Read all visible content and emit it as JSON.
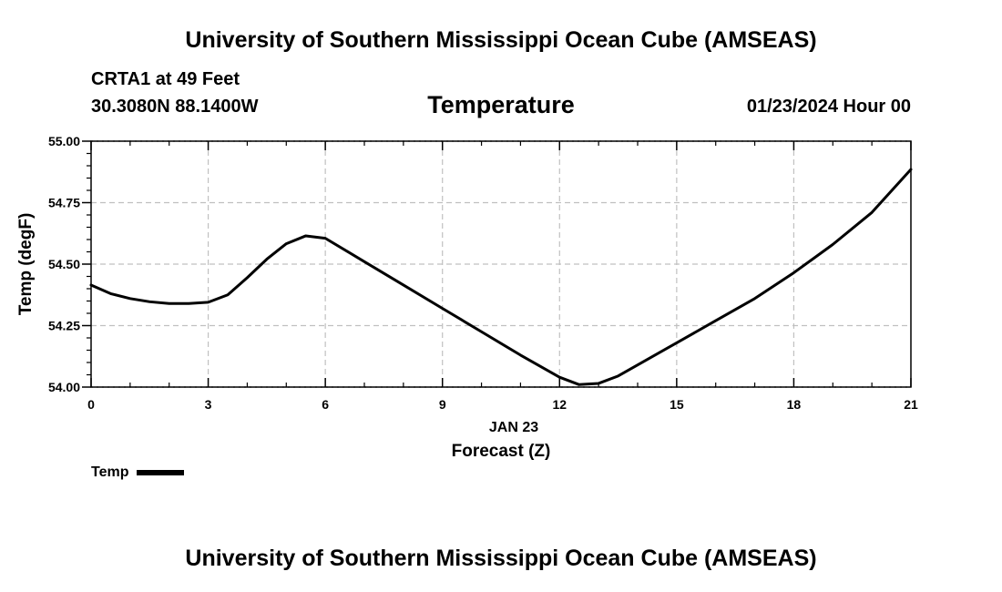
{
  "header": {
    "title": "University of Southern Mississippi Ocean Cube (AMSEAS)",
    "station": "CRTA1 at 49 Feet",
    "coordinates": "30.3080N  88.1400W",
    "variable": "Temperature",
    "datetime": "01/23/2024 Hour 00"
  },
  "footer": {
    "title": "University of Southern Mississippi Ocean Cube (AMSEAS)"
  },
  "legend": {
    "label": "Temp"
  },
  "chart_data": {
    "type": "line",
    "title": "Temperature",
    "xlabel": "Forecast (Z)",
    "xsublabel": "JAN 23",
    "ylabel": "Temp (degF)",
    "xlim": [
      0,
      21
    ],
    "ylim": [
      54.0,
      55.0
    ],
    "xticks": [
      0,
      3,
      6,
      9,
      12,
      15,
      18,
      21
    ],
    "yticks": [
      54.0,
      54.25,
      54.5,
      54.75,
      55.0
    ],
    "ytick_labels": [
      "54.00",
      "54.25",
      "54.50",
      "54.75",
      "55.00"
    ],
    "grid": true,
    "series": [
      {
        "name": "Temp",
        "color": "#000000",
        "x": [
          0,
          0.5,
          1,
          1.5,
          2,
          2.5,
          3,
          3.5,
          4,
          4.5,
          5,
          5.5,
          6,
          7,
          8,
          9,
          10,
          11,
          12,
          12.5,
          13,
          13.5,
          14,
          15,
          16,
          17,
          18,
          19,
          20,
          21
        ],
        "y": [
          54.415,
          54.38,
          54.36,
          54.347,
          54.34,
          54.34,
          54.345,
          54.375,
          54.445,
          54.52,
          54.583,
          54.615,
          54.605,
          54.51,
          54.415,
          54.32,
          54.225,
          54.13,
          54.04,
          54.01,
          54.015,
          54.045,
          54.09,
          54.18,
          54.27,
          54.36,
          54.465,
          54.58,
          54.71,
          54.885
        ]
      }
    ]
  }
}
